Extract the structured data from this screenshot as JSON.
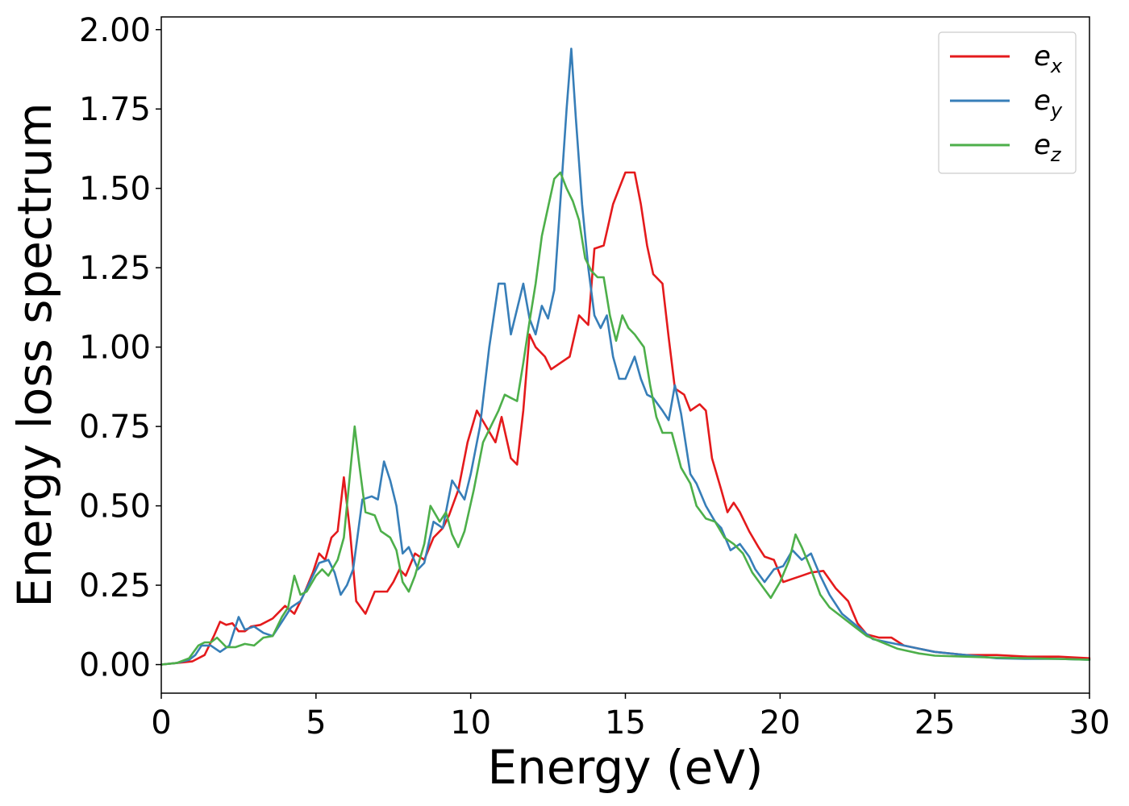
{
  "chart_data": {
    "type": "line",
    "title": "",
    "xlabel": "Energy (eV)",
    "ylabel": "Energy loss spectrum",
    "xlim": [
      0,
      30
    ],
    "ylim": [
      -0.09,
      2.04
    ],
    "xticks": [
      0,
      5,
      10,
      15,
      20,
      25,
      30
    ],
    "xtick_labels": [
      "0",
      "5",
      "10",
      "15",
      "20",
      "25",
      "30"
    ],
    "yticks": [
      0,
      0.25,
      0.5,
      0.75,
      1.0,
      1.25,
      1.5,
      1.75,
      2.0
    ],
    "ytick_labels": [
      "0.00",
      "0.25",
      "0.50",
      "0.75",
      "1.00",
      "1.25",
      "1.50",
      "1.75",
      "2.00"
    ],
    "grid": false,
    "legend_position": "top-right",
    "series": [
      {
        "name": "e",
        "subscript": "x",
        "color": "#e41a1c",
        "points": [
          [
            0,
            0
          ],
          [
            0.5,
            0.005
          ],
          [
            1,
            0.01
          ],
          [
            1.4,
            0.03
          ],
          [
            1.7,
            0.09
          ],
          [
            1.9,
            0.135
          ],
          [
            2.1,
            0.125
          ],
          [
            2.3,
            0.13
          ],
          [
            2.5,
            0.105
          ],
          [
            2.7,
            0.105
          ],
          [
            2.9,
            0.12
          ],
          [
            3.2,
            0.125
          ],
          [
            3.6,
            0.145
          ],
          [
            4.0,
            0.185
          ],
          [
            4.3,
            0.16
          ],
          [
            4.6,
            0.22
          ],
          [
            4.9,
            0.29
          ],
          [
            5.1,
            0.35
          ],
          [
            5.3,
            0.33
          ],
          [
            5.5,
            0.4
          ],
          [
            5.7,
            0.42
          ],
          [
            5.9,
            0.59
          ],
          [
            6.1,
            0.42
          ],
          [
            6.3,
            0.2
          ],
          [
            6.6,
            0.16
          ],
          [
            6.9,
            0.23
          ],
          [
            7.3,
            0.23
          ],
          [
            7.5,
            0.26
          ],
          [
            7.7,
            0.3
          ],
          [
            7.9,
            0.28
          ],
          [
            8.2,
            0.35
          ],
          [
            8.5,
            0.33
          ],
          [
            8.8,
            0.4
          ],
          [
            9.1,
            0.43
          ],
          [
            9.3,
            0.47
          ],
          [
            9.6,
            0.55
          ],
          [
            9.9,
            0.7
          ],
          [
            10.2,
            0.8
          ],
          [
            10.5,
            0.75
          ],
          [
            10.8,
            0.7
          ],
          [
            11.0,
            0.78
          ],
          [
            11.3,
            0.65
          ],
          [
            11.5,
            0.63
          ],
          [
            11.7,
            0.8
          ],
          [
            11.9,
            1.04
          ],
          [
            12.1,
            1.0
          ],
          [
            12.4,
            0.97
          ],
          [
            12.6,
            0.93
          ],
          [
            12.9,
            0.95
          ],
          [
            13.2,
            0.97
          ],
          [
            13.5,
            1.1
          ],
          [
            13.8,
            1.07
          ],
          [
            14.0,
            1.31
          ],
          [
            14.3,
            1.32
          ],
          [
            14.6,
            1.45
          ],
          [
            14.8,
            1.5
          ],
          [
            15.0,
            1.55
          ],
          [
            15.3,
            1.55
          ],
          [
            15.5,
            1.45
          ],
          [
            15.7,
            1.32
          ],
          [
            15.9,
            1.23
          ],
          [
            16.2,
            1.2
          ],
          [
            16.4,
            1.03
          ],
          [
            16.6,
            0.87
          ],
          [
            16.9,
            0.85
          ],
          [
            17.1,
            0.8
          ],
          [
            17.4,
            0.82
          ],
          [
            17.6,
            0.8
          ],
          [
            17.8,
            0.65
          ],
          [
            18.1,
            0.55
          ],
          [
            18.3,
            0.48
          ],
          [
            18.5,
            0.51
          ],
          [
            18.7,
            0.48
          ],
          [
            19.0,
            0.42
          ],
          [
            19.3,
            0.37
          ],
          [
            19.5,
            0.34
          ],
          [
            19.8,
            0.33
          ],
          [
            20.1,
            0.26
          ],
          [
            20.4,
            0.27
          ],
          [
            20.7,
            0.28
          ],
          [
            21.0,
            0.29
          ],
          [
            21.4,
            0.295
          ],
          [
            21.8,
            0.24
          ],
          [
            22.2,
            0.2
          ],
          [
            22.5,
            0.13
          ],
          [
            22.8,
            0.095
          ],
          [
            23.2,
            0.085
          ],
          [
            23.6,
            0.085
          ],
          [
            24.0,
            0.06
          ],
          [
            24.5,
            0.05
          ],
          [
            25,
            0.04
          ],
          [
            26,
            0.03
          ],
          [
            27,
            0.03
          ],
          [
            28,
            0.025
          ],
          [
            29,
            0.025
          ],
          [
            30,
            0.02
          ]
        ]
      },
      {
        "name": "e",
        "subscript": "y",
        "color": "#377eb8",
        "points": [
          [
            0,
            0
          ],
          [
            0.5,
            0.005
          ],
          [
            0.9,
            0.015
          ],
          [
            1.1,
            0.03
          ],
          [
            1.3,
            0.06
          ],
          [
            1.6,
            0.06
          ],
          [
            1.9,
            0.04
          ],
          [
            2.2,
            0.06
          ],
          [
            2.5,
            0.15
          ],
          [
            2.7,
            0.11
          ],
          [
            3.0,
            0.12
          ],
          [
            3.3,
            0.1
          ],
          [
            3.6,
            0.09
          ],
          [
            3.9,
            0.135
          ],
          [
            4.2,
            0.18
          ],
          [
            4.5,
            0.2
          ],
          [
            4.8,
            0.26
          ],
          [
            5.1,
            0.32
          ],
          [
            5.4,
            0.33
          ],
          [
            5.6,
            0.29
          ],
          [
            5.8,
            0.22
          ],
          [
            6.0,
            0.25
          ],
          [
            6.2,
            0.3
          ],
          [
            6.5,
            0.52
          ],
          [
            6.8,
            0.53
          ],
          [
            7.0,
            0.52
          ],
          [
            7.2,
            0.64
          ],
          [
            7.4,
            0.58
          ],
          [
            7.6,
            0.5
          ],
          [
            7.8,
            0.35
          ],
          [
            8.0,
            0.37
          ],
          [
            8.3,
            0.3
          ],
          [
            8.5,
            0.32
          ],
          [
            8.8,
            0.45
          ],
          [
            9.1,
            0.43
          ],
          [
            9.4,
            0.58
          ],
          [
            9.6,
            0.55
          ],
          [
            9.8,
            0.52
          ],
          [
            10.0,
            0.6
          ],
          [
            10.3,
            0.75
          ],
          [
            10.6,
            1.0
          ],
          [
            10.9,
            1.2
          ],
          [
            11.1,
            1.2
          ],
          [
            11.3,
            1.04
          ],
          [
            11.5,
            1.12
          ],
          [
            11.7,
            1.2
          ],
          [
            11.9,
            1.09
          ],
          [
            12.1,
            1.04
          ],
          [
            12.3,
            1.13
          ],
          [
            12.5,
            1.09
          ],
          [
            12.7,
            1.18
          ],
          [
            12.9,
            1.46
          ],
          [
            13.1,
            1.75
          ],
          [
            13.25,
            1.94
          ],
          [
            13.4,
            1.72
          ],
          [
            13.6,
            1.45
          ],
          [
            13.8,
            1.25
          ],
          [
            14.0,
            1.1
          ],
          [
            14.2,
            1.06
          ],
          [
            14.4,
            1.1
          ],
          [
            14.6,
            0.97
          ],
          [
            14.8,
            0.9
          ],
          [
            15.0,
            0.9
          ],
          [
            15.3,
            0.97
          ],
          [
            15.5,
            0.9
          ],
          [
            15.7,
            0.85
          ],
          [
            15.9,
            0.84
          ],
          [
            16.2,
            0.8
          ],
          [
            16.4,
            0.77
          ],
          [
            16.6,
            0.88
          ],
          [
            16.8,
            0.79
          ],
          [
            17.1,
            0.6
          ],
          [
            17.3,
            0.57
          ],
          [
            17.6,
            0.5
          ],
          [
            17.9,
            0.45
          ],
          [
            18.1,
            0.43
          ],
          [
            18.4,
            0.36
          ],
          [
            18.7,
            0.38
          ],
          [
            19.0,
            0.34
          ],
          [
            19.2,
            0.3
          ],
          [
            19.5,
            0.26
          ],
          [
            19.8,
            0.3
          ],
          [
            20.1,
            0.31
          ],
          [
            20.4,
            0.36
          ],
          [
            20.7,
            0.33
          ],
          [
            21.0,
            0.35
          ],
          [
            21.3,
            0.28
          ],
          [
            21.6,
            0.22
          ],
          [
            22.0,
            0.16
          ],
          [
            22.5,
            0.12
          ],
          [
            23.0,
            0.08
          ],
          [
            23.5,
            0.07
          ],
          [
            24,
            0.06
          ],
          [
            24.5,
            0.05
          ],
          [
            25,
            0.04
          ],
          [
            26,
            0.03
          ],
          [
            27,
            0.02
          ],
          [
            28,
            0.018
          ],
          [
            29,
            0.018
          ],
          [
            30,
            0.015
          ]
        ]
      },
      {
        "name": "e",
        "subscript": "z",
        "color": "#4daf4a",
        "points": [
          [
            0,
            0
          ],
          [
            0.5,
            0.005
          ],
          [
            0.9,
            0.02
          ],
          [
            1.2,
            0.06
          ],
          [
            1.4,
            0.07
          ],
          [
            1.6,
            0.07
          ],
          [
            1.8,
            0.085
          ],
          [
            2.1,
            0.055
          ],
          [
            2.4,
            0.055
          ],
          [
            2.7,
            0.065
          ],
          [
            3.0,
            0.06
          ],
          [
            3.3,
            0.085
          ],
          [
            3.6,
            0.09
          ],
          [
            3.9,
            0.15
          ],
          [
            4.1,
            0.18
          ],
          [
            4.3,
            0.28
          ],
          [
            4.5,
            0.22
          ],
          [
            4.7,
            0.23
          ],
          [
            5.0,
            0.28
          ],
          [
            5.2,
            0.3
          ],
          [
            5.4,
            0.28
          ],
          [
            5.7,
            0.33
          ],
          [
            5.9,
            0.4
          ],
          [
            6.1,
            0.6
          ],
          [
            6.25,
            0.75
          ],
          [
            6.4,
            0.63
          ],
          [
            6.6,
            0.48
          ],
          [
            6.9,
            0.47
          ],
          [
            7.1,
            0.42
          ],
          [
            7.4,
            0.4
          ],
          [
            7.6,
            0.36
          ],
          [
            7.8,
            0.26
          ],
          [
            8.0,
            0.23
          ],
          [
            8.2,
            0.28
          ],
          [
            8.5,
            0.38
          ],
          [
            8.7,
            0.5
          ],
          [
            9.0,
            0.45
          ],
          [
            9.2,
            0.48
          ],
          [
            9.4,
            0.41
          ],
          [
            9.6,
            0.37
          ],
          [
            9.8,
            0.42
          ],
          [
            10.1,
            0.55
          ],
          [
            10.4,
            0.7
          ],
          [
            10.7,
            0.76
          ],
          [
            10.9,
            0.8
          ],
          [
            11.1,
            0.85
          ],
          [
            11.3,
            0.84
          ],
          [
            11.5,
            0.83
          ],
          [
            11.7,
            0.95
          ],
          [
            11.9,
            1.08
          ],
          [
            12.1,
            1.2
          ],
          [
            12.3,
            1.35
          ],
          [
            12.5,
            1.44
          ],
          [
            12.7,
            1.53
          ],
          [
            12.9,
            1.55
          ],
          [
            13.1,
            1.5
          ],
          [
            13.3,
            1.46
          ],
          [
            13.5,
            1.4
          ],
          [
            13.7,
            1.28
          ],
          [
            13.9,
            1.24
          ],
          [
            14.1,
            1.22
          ],
          [
            14.3,
            1.22
          ],
          [
            14.5,
            1.1
          ],
          [
            14.7,
            1.02
          ],
          [
            14.9,
            1.1
          ],
          [
            15.1,
            1.06
          ],
          [
            15.3,
            1.04
          ],
          [
            15.6,
            1.0
          ],
          [
            15.8,
            0.88
          ],
          [
            16.0,
            0.78
          ],
          [
            16.2,
            0.73
          ],
          [
            16.5,
            0.73
          ],
          [
            16.8,
            0.62
          ],
          [
            17.1,
            0.57
          ],
          [
            17.3,
            0.5
          ],
          [
            17.6,
            0.46
          ],
          [
            17.9,
            0.45
          ],
          [
            18.2,
            0.4
          ],
          [
            18.5,
            0.38
          ],
          [
            18.8,
            0.35
          ],
          [
            19.1,
            0.29
          ],
          [
            19.4,
            0.25
          ],
          [
            19.7,
            0.21
          ],
          [
            20.0,
            0.26
          ],
          [
            20.3,
            0.33
          ],
          [
            20.5,
            0.41
          ],
          [
            20.7,
            0.37
          ],
          [
            21.0,
            0.3
          ],
          [
            21.3,
            0.22
          ],
          [
            21.6,
            0.18
          ],
          [
            22.0,
            0.15
          ],
          [
            22.4,
            0.12
          ],
          [
            22.8,
            0.09
          ],
          [
            23.3,
            0.07
          ],
          [
            23.8,
            0.05
          ],
          [
            24.5,
            0.035
          ],
          [
            25,
            0.028
          ],
          [
            26,
            0.025
          ],
          [
            27,
            0.022
          ],
          [
            28,
            0.02
          ],
          [
            29,
            0.018
          ],
          [
            30,
            0.015
          ]
        ]
      }
    ]
  }
}
